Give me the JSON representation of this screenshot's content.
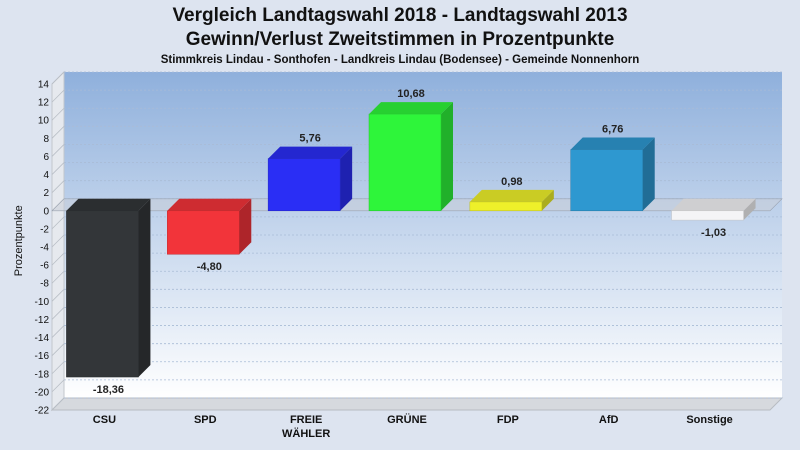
{
  "chart_data": {
    "type": "bar",
    "title": "Vergleich Landtagswahl 2018 - Landtagswahl 2013",
    "subtitle": "Gewinn/Verlust Zweitstimmen in Prozentpunkte",
    "caption": "Stimmkreis Lindau - Sonthofen - Landkreis Lindau (Bodensee) - Gemeinde Nonnenhorn",
    "ylabel": "Prozentpunkte",
    "ylim": [
      -22,
      14
    ],
    "yticks": [
      14,
      12,
      10,
      8,
      6,
      4,
      2,
      0,
      -2,
      -4,
      -6,
      -8,
      -10,
      -12,
      -14,
      -16,
      -18,
      -20,
      -22
    ],
    "categories": [
      "CSU",
      "SPD",
      "FREIE WÄHLER",
      "GRÜNE",
      "FDP",
      "AfD",
      "Sonstige"
    ],
    "category_lines": [
      [
        "CSU"
      ],
      [
        "SPD"
      ],
      [
        "FREIE",
        "WÄHLER"
      ],
      [
        "GRÜNE"
      ],
      [
        "FDP"
      ],
      [
        "AfD"
      ],
      [
        "Sonstige"
      ]
    ],
    "values": [
      -18.36,
      -4.8,
      5.76,
      10.68,
      0.98,
      6.76,
      -1.03
    ],
    "value_labels": [
      "-18,36",
      "-4,80",
      "5,76",
      "10,68",
      "0,98",
      "6,76",
      "-1,03"
    ],
    "colors": [
      "#333639",
      "#f2343a",
      "#2a2ef5",
      "#2ef53a",
      "#eef02a",
      "#2e98d0",
      "#f4f4f6"
    ],
    "grid": true,
    "legend": "none"
  }
}
